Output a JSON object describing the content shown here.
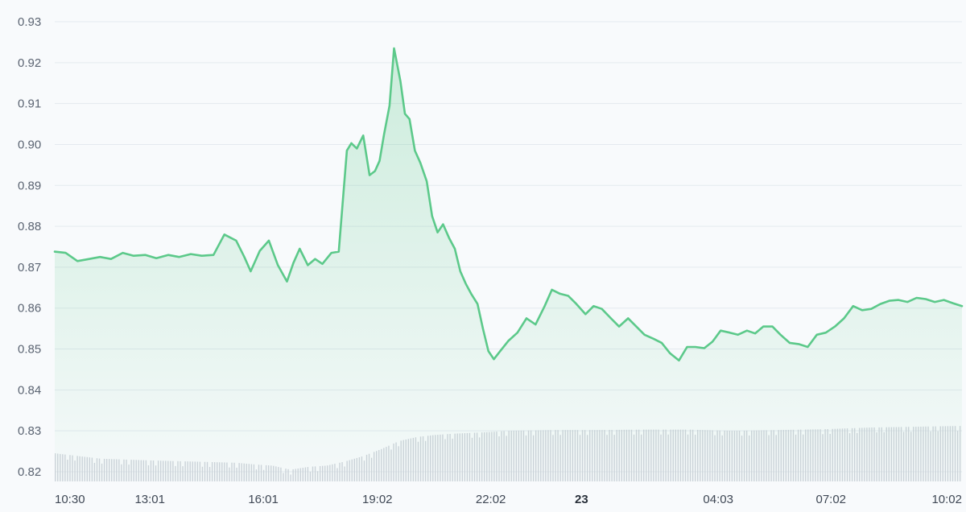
{
  "colors": {
    "line": "#5cc98a",
    "fill_top": "#5cc98a",
    "volume": "#cdd2da",
    "grid": "#e4e9ef",
    "background": "#f8fafc"
  },
  "chart_data": {
    "type": "line",
    "title": "",
    "xlabel": "",
    "ylabel": "",
    "ylim": [
      0.817,
      0.932
    ],
    "grid": true,
    "y_ticks": [
      "0.93",
      "0.92",
      "0.91",
      "0.90",
      "0.89",
      "0.88",
      "0.87",
      "0.86",
      "0.85",
      "0.84",
      "0.83",
      "0.82"
    ],
    "y_tick_values": [
      0.93,
      0.92,
      0.91,
      0.9,
      0.89,
      0.88,
      0.87,
      0.86,
      0.85,
      0.84,
      0.83,
      0.82
    ],
    "x_ticks": [
      {
        "label": "10:30",
        "t": 0.0,
        "bold": false
      },
      {
        "label": "13:01",
        "t": 0.1049,
        "bold": false
      },
      {
        "label": "16:01",
        "t": 0.2299,
        "bold": false
      },
      {
        "label": "19:02",
        "t": 0.3556,
        "bold": false
      },
      {
        "label": "22:02",
        "t": 0.4806,
        "bold": false
      },
      {
        "label": "23",
        "t": 0.5806,
        "bold": true
      },
      {
        "label": "04:03",
        "t": 0.7313,
        "bold": false
      },
      {
        "label": "07:02",
        "t": 0.8556,
        "bold": false
      },
      {
        "label": "10:02",
        "t": 0.9806,
        "bold": false
      }
    ],
    "series": [
      {
        "x": [
          0.0,
          0.012,
          0.025,
          0.038,
          0.05,
          0.062,
          0.075,
          0.087,
          0.1,
          0.112,
          0.125,
          0.137,
          0.15,
          0.162,
          0.175,
          0.187,
          0.2,
          0.209,
          0.216,
          0.226,
          0.236,
          0.246,
          0.256,
          0.263,
          0.27,
          0.279,
          0.287,
          0.295,
          0.305,
          0.313,
          0.322,
          0.327,
          0.333,
          0.34,
          0.347,
          0.353,
          0.358,
          0.363,
          0.369,
          0.374,
          0.381,
          0.386,
          0.391,
          0.397,
          0.403,
          0.41,
          0.416,
          0.422,
          0.428,
          0.435,
          0.441,
          0.447,
          0.453,
          0.459,
          0.466,
          0.472,
          0.478,
          0.484,
          0.491,
          0.5,
          0.51,
          0.52,
          0.53,
          0.54,
          0.548,
          0.557,
          0.566,
          0.575,
          0.585,
          0.594,
          0.603,
          0.613,
          0.622,
          0.632,
          0.641,
          0.65,
          0.66,
          0.669,
          0.678,
          0.688,
          0.697,
          0.706,
          0.716,
          0.725,
          0.734,
          0.744,
          0.753,
          0.763,
          0.772,
          0.781,
          0.791,
          0.8,
          0.81,
          0.82,
          0.83,
          0.84,
          0.85,
          0.86,
          0.87,
          0.88,
          0.89,
          0.9,
          0.91,
          0.92,
          0.93,
          0.94,
          0.95,
          0.96,
          0.97,
          0.98,
          0.99,
          1.0
        ],
        "y": [
          0.8738,
          0.8735,
          0.8715,
          0.872,
          0.8725,
          0.872,
          0.8735,
          0.8728,
          0.873,
          0.8722,
          0.873,
          0.8725,
          0.8732,
          0.8728,
          0.873,
          0.878,
          0.8765,
          0.8725,
          0.869,
          0.874,
          0.8765,
          0.8705,
          0.8665,
          0.871,
          0.8745,
          0.8705,
          0.872,
          0.8708,
          0.8735,
          0.8738,
          0.8985,
          0.9003,
          0.899,
          0.9022,
          0.8925,
          0.8935,
          0.896,
          0.9025,
          0.9095,
          0.9235,
          0.9155,
          0.9075,
          0.9062,
          0.8985,
          0.8955,
          0.891,
          0.8825,
          0.8785,
          0.8805,
          0.877,
          0.8745,
          0.869,
          0.866,
          0.8635,
          0.861,
          0.855,
          0.8495,
          0.8475,
          0.8495,
          0.852,
          0.854,
          0.8575,
          0.856,
          0.8605,
          0.8645,
          0.8635,
          0.863,
          0.861,
          0.8585,
          0.8605,
          0.8598,
          0.8575,
          0.8555,
          0.8575,
          0.8555,
          0.8535,
          0.8525,
          0.8515,
          0.849,
          0.8472,
          0.8505,
          0.8505,
          0.8502,
          0.8518,
          0.8545,
          0.854,
          0.8535,
          0.8545,
          0.8538,
          0.8555,
          0.8555,
          0.8535,
          0.8515,
          0.8512,
          0.8505,
          0.8535,
          0.854,
          0.8555,
          0.8575,
          0.8605,
          0.8595,
          0.8598,
          0.861,
          0.8618,
          0.862,
          0.8615,
          0.8625,
          0.8622,
          0.8615,
          0.862,
          0.8612,
          0.8605
        ]
      }
    ],
    "volume": {
      "y_max": 0.8335,
      "x": [
        0.0,
        0.05,
        0.1,
        0.15,
        0.2,
        0.22,
        0.24,
        0.26,
        0.28,
        0.3,
        0.32,
        0.34,
        0.36,
        0.38,
        0.4,
        0.42,
        0.44,
        0.46,
        0.48,
        0.5,
        0.55,
        0.6,
        0.65,
        0.7,
        0.75,
        0.8,
        0.85,
        0.9,
        0.95,
        1.0
      ],
      "y": [
        0.8245,
        0.8232,
        0.8228,
        0.8225,
        0.8222,
        0.8218,
        0.8215,
        0.8205,
        0.8212,
        0.8215,
        0.8225,
        0.8238,
        0.8255,
        0.8275,
        0.8285,
        0.829,
        0.8293,
        0.8295,
        0.8297,
        0.83,
        0.8302,
        0.8302,
        0.8303,
        0.8303,
        0.83,
        0.8302,
        0.8304,
        0.8308,
        0.831,
        0.8312
      ]
    }
  }
}
